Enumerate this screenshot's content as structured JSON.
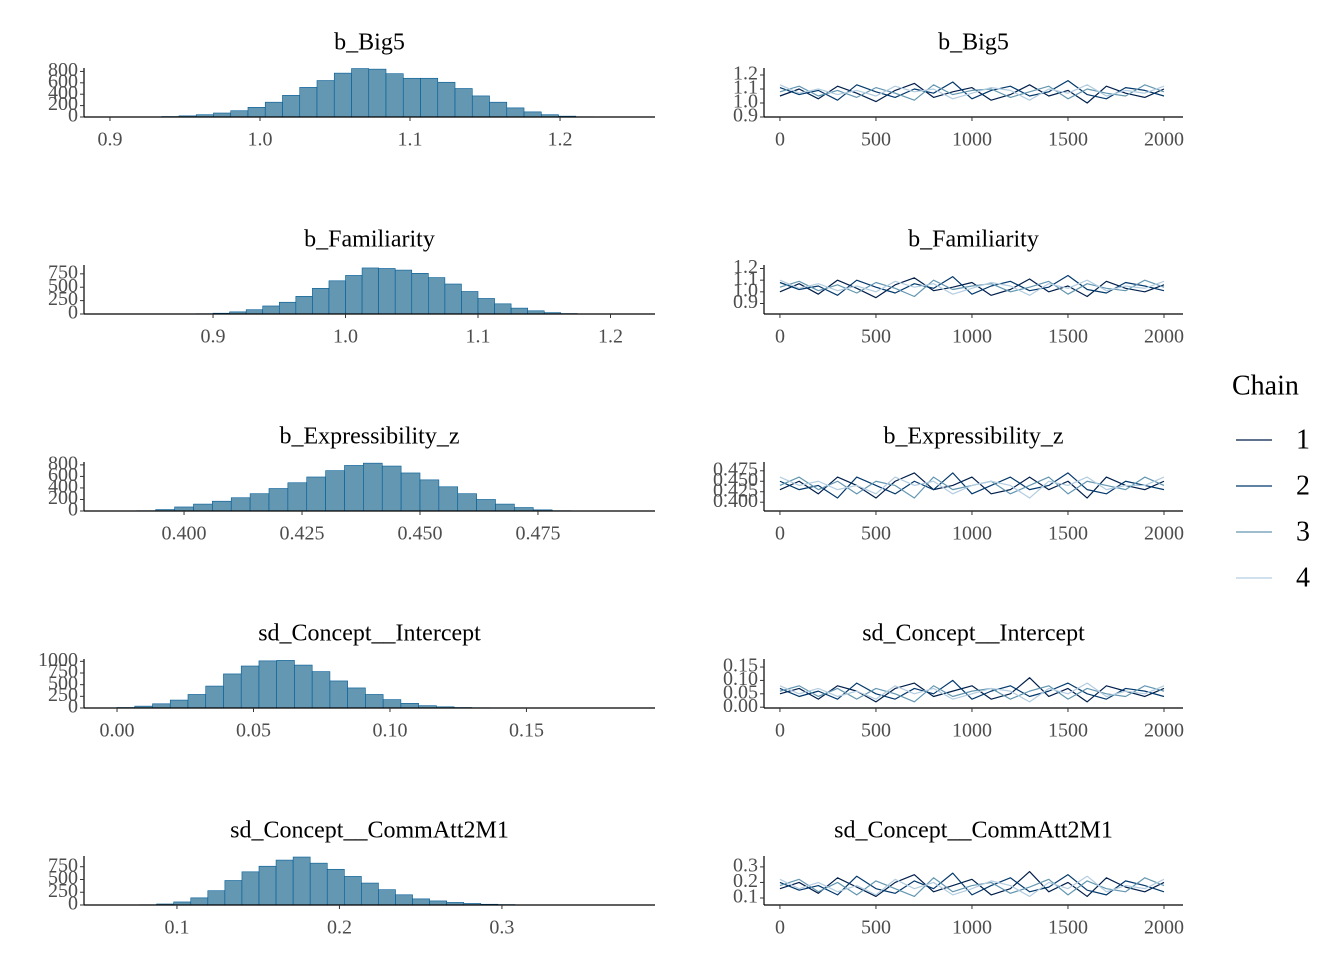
{
  "chart_data": [
    {
      "type": "histogram",
      "title": "b_Big5",
      "color": "#6497b1",
      "edgecolor": "#005b96",
      "bins": [
        0.9,
        0.9115,
        0.923,
        0.9345,
        0.946,
        0.9575,
        0.969,
        0.9805,
        0.992,
        1.0035,
        1.015,
        1.0265,
        1.038,
        1.0495,
        1.061,
        1.0725,
        1.084,
        1.0955,
        1.107,
        1.1185,
        1.13,
        1.1415,
        1.153,
        1.1645,
        1.176,
        1.1875,
        1.199,
        1.2105,
        1.222,
        1.2335,
        1.245
      ],
      "values": [
        0,
        0,
        2,
        8,
        20,
        40,
        70,
        110,
        170,
        260,
        380,
        520,
        640,
        770,
        850,
        840,
        760,
        680,
        680,
        610,
        500,
        370,
        260,
        160,
        90,
        40,
        15,
        4,
        1,
        1
      ],
      "xlim": [
        0.8827,
        1.2633
      ],
      "xticks": [
        0.9,
        {
          "value": 1,
          "label": "1.0"
        },
        1.1,
        1.2
      ],
      "ylim": [
        0,
        860
      ],
      "yticks": [
        0,
        200,
        400,
        600,
        800
      ]
    },
    {
      "type": "line",
      "title": "b_Big5",
      "legend_title": "Chain",
      "x": [
        0,
        100,
        200,
        300,
        400,
        500,
        600,
        700,
        800,
        900,
        1000,
        1100,
        1200,
        1300,
        1400,
        1500,
        1600,
        1700,
        1800,
        1900,
        2000
      ],
      "xlim": [
        -83,
        2099
      ],
      "xticks": [
        0,
        500,
        1000,
        1500,
        2000
      ],
      "ylim": [
        0.9,
        1.25
      ],
      "yticks": [
        0.9,
        {
          "value": 1,
          "label": "1.0"
        },
        1.1,
        1.2
      ],
      "series": [
        {
          "name": "1",
          "color": "#011f4b",
          "values": [
            1.05,
            1.1,
            1.03,
            1.12,
            1.07,
            1.01,
            1.09,
            1.14,
            1.04,
            1.08,
            1.11,
            1.02,
            1.06,
            1.13,
            1.05,
            1.09,
            1.0,
            1.12,
            1.07,
            1.04,
            1.1
          ]
        },
        {
          "name": "2",
          "color": "#03396c",
          "values": [
            1.11,
            1.06,
            1.09,
            1.02,
            1.13,
            1.08,
            1.04,
            1.1,
            1.07,
            1.15,
            1.03,
            1.09,
            1.12,
            1.05,
            1.08,
            1.16,
            1.06,
            1.03,
            1.11,
            1.09,
            1.05
          ]
        },
        {
          "name": "3",
          "color": "#6497b1",
          "values": [
            1.08,
            1.12,
            1.05,
            1.09,
            1.04,
            1.11,
            1.07,
            1.02,
            1.13,
            1.06,
            1.09,
            1.1,
            1.04,
            1.08,
            1.12,
            1.03,
            1.1,
            1.07,
            1.05,
            1.13,
            1.08
          ]
        },
        {
          "name": "4",
          "color": "#b3cde0",
          "values": [
            1.13,
            1.07,
            1.1,
            1.06,
            1.09,
            1.05,
            1.12,
            1.08,
            1.1,
            1.03,
            1.07,
            1.11,
            1.09,
            1.02,
            1.1,
            1.07,
            1.13,
            1.05,
            1.09,
            1.07,
            1.12
          ]
        }
      ]
    },
    {
      "type": "histogram",
      "title": "b_Familiarity",
      "color": "#6497b1",
      "edgecolor": "#005b96",
      "bins": [
        0.8125,
        0.825,
        0.8375,
        0.85,
        0.8625,
        0.875,
        0.8875,
        0.9,
        0.9125,
        0.925,
        0.9375,
        0.95,
        0.9625,
        0.975,
        0.9875,
        1.0,
        1.0125,
        1.025,
        1.0375,
        1.05,
        1.0625,
        1.075,
        1.0875,
        1.1,
        1.1125,
        1.125,
        1.1375,
        1.15,
        1.1625,
        1.175,
        1.1875,
        1.2,
        1.2125,
        1.225
      ],
      "values": [
        0,
        0,
        0,
        0,
        0,
        1,
        5,
        15,
        40,
        80,
        150,
        220,
        330,
        480,
        620,
        720,
        860,
        850,
        820,
        760,
        680,
        560,
        420,
        290,
        190,
        110,
        60,
        25,
        8,
        3,
        1,
        0,
        1
      ],
      "xlim": [
        0.8026,
        1.2336
      ],
      "xticks": [
        0.9,
        {
          "value": 1,
          "label": "1.0"
        },
        1.1,
        1.2
      ],
      "ylim": [
        0,
        915
      ],
      "yticks": [
        0,
        250,
        500,
        750
      ]
    },
    {
      "type": "line",
      "title": "b_Familiarity",
      "x": [
        0,
        100,
        200,
        300,
        400,
        500,
        600,
        700,
        800,
        900,
        1000,
        1100,
        1200,
        1300,
        1400,
        1500,
        1600,
        1700,
        1800,
        1900,
        2000
      ],
      "xlim": [
        -83,
        2099
      ],
      "xticks": [
        0,
        500,
        1000,
        1500,
        2000
      ],
      "ylim": [
        0.81,
        1.23
      ],
      "yticks": [
        0.9,
        {
          "value": 1,
          "label": "1.0"
        },
        1.1,
        1.2
      ],
      "series": [
        {
          "color": "#011f4b",
          "values": [
            1.0,
            1.07,
            0.98,
            1.1,
            1.03,
            0.95,
            1.06,
            1.12,
            1.01,
            1.04,
            1.08,
            0.97,
            1.02,
            1.11,
            1.0,
            1.05,
            0.96,
            1.09,
            1.03,
            1.0,
            1.06
          ]
        },
        {
          "color": "#03396c",
          "values": [
            1.08,
            1.02,
            1.05,
            0.97,
            1.1,
            1.04,
            0.99,
            1.07,
            1.03,
            1.13,
            0.98,
            1.05,
            1.09,
            1.01,
            1.04,
            1.14,
            1.02,
            0.99,
            1.08,
            1.05,
            1.01
          ]
        },
        {
          "color": "#6497b1",
          "values": [
            1.04,
            1.09,
            1.01,
            1.06,
            0.99,
            1.08,
            1.03,
            0.96,
            1.1,
            1.02,
            1.05,
            1.07,
            1.0,
            1.04,
            1.09,
            0.98,
            1.07,
            1.03,
            1.01,
            1.1,
            1.04
          ]
        },
        {
          "color": "#b3cde0",
          "values": [
            1.1,
            1.03,
            1.07,
            1.01,
            1.05,
            1.0,
            1.09,
            1.04,
            1.07,
            0.98,
            1.03,
            1.08,
            1.05,
            0.97,
            1.07,
            1.03,
            1.1,
            1.01,
            1.05,
            1.03,
            1.09
          ]
        }
      ]
    },
    {
      "type": "histogram",
      "title": "b_Expressibility_z",
      "color": "#6497b1",
      "edgecolor": "#005b96",
      "bins": [
        0.378,
        0.382,
        0.386,
        0.39,
        0.394,
        0.398,
        0.402,
        0.406,
        0.41,
        0.414,
        0.418,
        0.422,
        0.426,
        0.43,
        0.434,
        0.438,
        0.442,
        0.446,
        0.45,
        0.454,
        0.458,
        0.462,
        0.466,
        0.47,
        0.474,
        0.478,
        0.482,
        0.486,
        0.49,
        0.494,
        0.498
      ],
      "values": [
        0,
        0,
        1,
        5,
        25,
        70,
        120,
        170,
        230,
        300,
        390,
        490,
        590,
        700,
        790,
        830,
        780,
        660,
        540,
        420,
        300,
        200,
        120,
        60,
        20,
        5,
        1,
        0,
        0,
        1
      ],
      "xlim": [
        0.3788,
        0.4998
      ],
      "xticks": [
        {
          "value": 0.4,
          "label": "0.400"
        },
        0.425,
        {
          "value": 0.45,
          "label": "0.450"
        },
        0.475
      ],
      "ylim": [
        0,
        850
      ],
      "yticks": [
        0,
        200,
        400,
        600,
        800
      ]
    },
    {
      "type": "line",
      "title": "b_Expressibility_z",
      "x": [
        0,
        100,
        200,
        300,
        400,
        500,
        600,
        700,
        800,
        900,
        1000,
        1100,
        1200,
        1300,
        1400,
        1500,
        1600,
        1700,
        1800,
        1900,
        2000
      ],
      "xlim": [
        -83,
        2099
      ],
      "xticks": [
        0,
        500,
        1000,
        1500,
        2000
      ],
      "ylim": [
        0.379,
        0.496
      ],
      "yticks": [
        {
          "value": 0.4,
          "label": "0.400"
        },
        0.425,
        {
          "value": 0.45,
          "label": "0.450"
        },
        0.475
      ],
      "series": [
        {
          "color": "#011f4b",
          "values": [
            0.43,
            0.45,
            0.42,
            0.46,
            0.44,
            0.41,
            0.45,
            0.47,
            0.43,
            0.44,
            0.46,
            0.42,
            0.43,
            0.46,
            0.43,
            0.45,
            0.41,
            0.46,
            0.44,
            0.43,
            0.45
          ]
        },
        {
          "color": "#03396c",
          "values": [
            0.45,
            0.43,
            0.44,
            0.41,
            0.46,
            0.44,
            0.42,
            0.45,
            0.43,
            0.47,
            0.42,
            0.44,
            0.46,
            0.43,
            0.44,
            0.47,
            0.43,
            0.42,
            0.45,
            0.44,
            0.43
          ]
        },
        {
          "color": "#6497b1",
          "values": [
            0.44,
            0.46,
            0.43,
            0.45,
            0.42,
            0.45,
            0.44,
            0.41,
            0.46,
            0.43,
            0.44,
            0.45,
            0.42,
            0.44,
            0.46,
            0.42,
            0.45,
            0.44,
            0.43,
            0.46,
            0.44
          ]
        },
        {
          "color": "#b3cde0",
          "values": [
            0.46,
            0.44,
            0.45,
            0.43,
            0.44,
            0.42,
            0.46,
            0.44,
            0.45,
            0.42,
            0.44,
            0.45,
            0.44,
            0.41,
            0.45,
            0.44,
            0.46,
            0.43,
            0.44,
            0.44,
            0.46
          ]
        }
      ]
    },
    {
      "type": "histogram",
      "title": "sd_Concept__Intercept",
      "color": "#6497b1",
      "edgecolor": "#005b96",
      "bins": [
        0,
        0.0065,
        0.013,
        0.0195,
        0.026,
        0.0325,
        0.039,
        0.0455,
        0.052,
        0.0585,
        0.065,
        0.0715,
        0.078,
        0.0845,
        0.091,
        0.0975,
        0.104,
        0.1105,
        0.117,
        0.1235,
        0.13,
        0.1365,
        0.143,
        0.1495,
        0.156,
        0.1625,
        0.169,
        0.1755,
        0.182,
        0.1885,
        0.195
      ],
      "values": [
        10,
        40,
        90,
        170,
        290,
        470,
        730,
        900,
        1010,
        1020,
        920,
        780,
        580,
        430,
        290,
        180,
        100,
        50,
        25,
        10,
        5,
        2,
        1,
        1,
        0,
        0,
        0,
        0,
        0,
        1
      ],
      "xlim": [
        -0.0121,
        0.1971
      ],
      "xticks": [
        {
          "value": 0,
          "label": "0.00"
        },
        0.05,
        {
          "value": 0.1,
          "label": "0.10"
        },
        0.15
      ],
      "ylim": [
        0,
        1050
      ],
      "yticks": [
        0,
        250,
        500,
        750,
        1000
      ]
    },
    {
      "type": "line",
      "title": "sd_Concept__Intercept",
      "x": [
        0,
        100,
        200,
        300,
        400,
        500,
        600,
        700,
        800,
        900,
        1000,
        1100,
        1200,
        1300,
        1400,
        1500,
        1600,
        1700,
        1800,
        1900,
        2000
      ],
      "xlim": [
        -83,
        2099
      ],
      "xticks": [
        0,
        500,
        1000,
        1500,
        2000
      ],
      "ylim": [
        -0.003,
        0.18
      ],
      "yticks": [
        {
          "value": 0,
          "label": "0.00"
        },
        0.05,
        {
          "value": 0.1,
          "label": "0.10"
        },
        0.15
      ],
      "series": [
        {
          "color": "#011f4b",
          "values": [
            0.05,
            0.07,
            0.03,
            0.08,
            0.06,
            0.02,
            0.07,
            0.09,
            0.04,
            0.06,
            0.08,
            0.03,
            0.05,
            0.11,
            0.04,
            0.07,
            0.02,
            0.08,
            0.06,
            0.04,
            0.07
          ]
        },
        {
          "color": "#03396c",
          "values": [
            0.07,
            0.04,
            0.06,
            0.03,
            0.09,
            0.05,
            0.03,
            0.07,
            0.05,
            0.1,
            0.03,
            0.06,
            0.08,
            0.04,
            0.06,
            0.09,
            0.05,
            0.03,
            0.07,
            0.06,
            0.04
          ]
        },
        {
          "color": "#6497b1",
          "values": [
            0.06,
            0.08,
            0.04,
            0.07,
            0.03,
            0.07,
            0.05,
            0.02,
            0.08,
            0.04,
            0.06,
            0.07,
            0.03,
            0.06,
            0.08,
            0.03,
            0.07,
            0.05,
            0.04,
            0.08,
            0.06
          ]
        },
        {
          "color": "#b3cde0",
          "values": [
            0.08,
            0.05,
            0.07,
            0.04,
            0.06,
            0.03,
            0.08,
            0.05,
            0.07,
            0.03,
            0.05,
            0.07,
            0.06,
            0.02,
            0.07,
            0.05,
            0.09,
            0.04,
            0.06,
            0.05,
            0.08
          ]
        }
      ]
    },
    {
      "type": "histogram",
      "title": "sd_Concept__CommAtt2M1",
      "color": "#6497b1",
      "edgecolor": "#005b96",
      "bins": [
        0.077,
        0.0875,
        0.098,
        0.1085,
        0.119,
        0.1295,
        0.14,
        0.1505,
        0.161,
        0.1715,
        0.182,
        0.1925,
        0.203,
        0.2135,
        0.224,
        0.2345,
        0.245,
        0.2555,
        0.266,
        0.2765,
        0.287,
        0.2975,
        0.308,
        0.3185,
        0.329,
        0.3395,
        0.35,
        0.3605,
        0.371,
        0.3815,
        0.392
      ],
      "values": [
        5,
        20,
        60,
        140,
        280,
        480,
        650,
        760,
        880,
        940,
        820,
        700,
        560,
        430,
        300,
        200,
        120,
        80,
        50,
        30,
        15,
        8,
        3,
        1,
        1,
        0,
        0,
        0,
        0,
        1
      ],
      "xlim": [
        0.0428,
        0.3942
      ],
      "xticks": [
        0.1,
        0.2,
        0.3
      ],
      "ylim": [
        0,
        960
      ],
      "yticks": [
        0,
        250,
        500,
        750
      ]
    },
    {
      "type": "line",
      "title": "sd_Concept__CommAtt2M1",
      "x": [
        0,
        100,
        200,
        300,
        400,
        500,
        600,
        700,
        800,
        900,
        1000,
        1100,
        1200,
        1300,
        1400,
        1500,
        1600,
        1700,
        1800,
        1900,
        2000
      ],
      "xlim": [
        -83,
        2099
      ],
      "xticks": [
        0,
        500,
        1000,
        1500,
        2000
      ],
      "ylim": [
        0.055,
        0.37
      ],
      "yticks": [
        0.1,
        0.2,
        0.3
      ],
      "series": [
        {
          "color": "#011f4b",
          "values": [
            0.16,
            0.2,
            0.13,
            0.23,
            0.17,
            0.11,
            0.2,
            0.25,
            0.14,
            0.18,
            0.22,
            0.12,
            0.16,
            0.27,
            0.14,
            0.2,
            0.11,
            0.23,
            0.17,
            0.14,
            0.2
          ]
        },
        {
          "color": "#03396c",
          "values": [
            0.2,
            0.15,
            0.18,
            0.12,
            0.24,
            0.16,
            0.13,
            0.21,
            0.16,
            0.26,
            0.12,
            0.18,
            0.23,
            0.14,
            0.17,
            0.25,
            0.15,
            0.12,
            0.21,
            0.18,
            0.14
          ]
        },
        {
          "color": "#6497b1",
          "values": [
            0.18,
            0.22,
            0.14,
            0.2,
            0.12,
            0.21,
            0.16,
            0.11,
            0.23,
            0.14,
            0.18,
            0.2,
            0.13,
            0.17,
            0.22,
            0.12,
            0.21,
            0.16,
            0.14,
            0.23,
            0.18
          ]
        },
        {
          "color": "#b3cde0",
          "values": [
            0.22,
            0.16,
            0.2,
            0.14,
            0.18,
            0.12,
            0.22,
            0.16,
            0.2,
            0.12,
            0.16,
            0.21,
            0.18,
            0.11,
            0.2,
            0.16,
            0.24,
            0.14,
            0.18,
            0.16,
            0.22
          ]
        }
      ]
    }
  ]
}
